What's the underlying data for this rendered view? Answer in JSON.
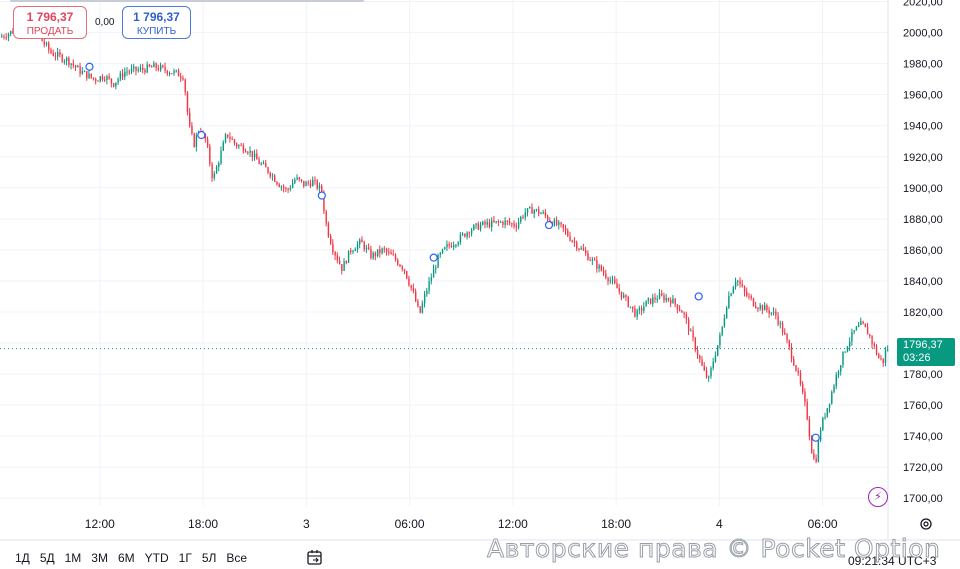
{
  "trade": {
    "sell_price": "1 796,37",
    "sell_label": "ПРОДАТЬ",
    "spread": "0,00",
    "buy_price": "1 796,37",
    "buy_label": "КУПИТЬ"
  },
  "timeframes": [
    "1Д",
    "5Д",
    "1М",
    "3М",
    "6М",
    "YTD",
    "1Г",
    "5Л",
    "Все"
  ],
  "watermark": "Авторские права © Pocket Option",
  "time_readout": "09:21:34 UTC+3",
  "current": {
    "price": "1796,37",
    "countdown": "03:26",
    "value": 1796.37
  },
  "colors": {
    "up": "#089981",
    "down": "#f23645",
    "accent": "#089981",
    "grid": "#f0f3fa"
  },
  "icons": {
    "calendar": "calendar-icon",
    "lightning": "lightning-icon",
    "settings": "settings-icon"
  },
  "chart_data": {
    "type": "line",
    "ylim": [
      1695,
      2021
    ],
    "y_ticks": [
      1700,
      1720,
      1740,
      1760,
      1780,
      1800,
      1820,
      1840,
      1860,
      1880,
      1900,
      1920,
      1940,
      1960,
      1980,
      2000,
      2020
    ],
    "y_tick_labels": [
      "1700,00",
      "1720,00",
      "1740,00",
      "1760,00",
      "1780,00",
      "1800,00",
      "1820,00",
      "1840,00",
      "1860,00",
      "1880,00",
      "1900,00",
      "1920,00",
      "1940,00",
      "1960,00",
      "1980,00",
      "2000,00",
      "2020,00"
    ],
    "x_ticks": [
      {
        "label": "12:00",
        "t": 12
      },
      {
        "label": "18:00",
        "t": 18
      },
      {
        "label": "3",
        "t": 24
      },
      {
        "label": "06:00",
        "t": 30
      },
      {
        "label": "12:00",
        "t": 36
      },
      {
        "label": "18:00",
        "t": 42
      },
      {
        "label": "4",
        "t": 48
      },
      {
        "label": "06:00",
        "t": 54
      }
    ],
    "xlim": [
      6.2,
      57.8
    ],
    "price_path": [
      [
        6.3,
        1997
      ],
      [
        7.5,
        2003
      ],
      [
        8.4,
        2000
      ],
      [
        9.3,
        1987
      ],
      [
        10.3,
        1982
      ],
      [
        11.0,
        1975
      ],
      [
        11.8,
        1970
      ],
      [
        12.4,
        1972
      ],
      [
        12.9,
        1967
      ],
      [
        13.6,
        1975
      ],
      [
        14.5,
        1976
      ],
      [
        15.3,
        1978
      ],
      [
        16.5,
        1974
      ],
      [
        17.0,
        1972
      ],
      [
        17.3,
        1940
      ],
      [
        17.6,
        1928
      ],
      [
        17.9,
        1938
      ],
      [
        18.3,
        1930
      ],
      [
        18.7,
        1905
      ],
      [
        19.1,
        1920
      ],
      [
        19.5,
        1935
      ],
      [
        20.0,
        1928
      ],
      [
        20.7,
        1925
      ],
      [
        21.4,
        1916
      ],
      [
        22.0,
        1910
      ],
      [
        22.5,
        1903
      ],
      [
        23.0,
        1898
      ],
      [
        23.5,
        1906
      ],
      [
        24.0,
        1902
      ],
      [
        24.5,
        1904
      ],
      [
        25.0,
        1898
      ],
      [
        25.3,
        1875
      ],
      [
        25.7,
        1860
      ],
      [
        26.2,
        1848
      ],
      [
        26.7,
        1860
      ],
      [
        27.3,
        1865
      ],
      [
        27.9,
        1856
      ],
      [
        28.6,
        1860
      ],
      [
        29.2,
        1855
      ],
      [
        29.8,
        1848
      ],
      [
        30.4,
        1830
      ],
      [
        30.7,
        1818
      ],
      [
        31.0,
        1830
      ],
      [
        31.3,
        1840
      ],
      [
        31.8,
        1855
      ],
      [
        32.3,
        1862
      ],
      [
        33.0,
        1867
      ],
      [
        33.6,
        1873
      ],
      [
        34.3,
        1876
      ],
      [
        35.0,
        1877
      ],
      [
        35.6,
        1878
      ],
      [
        36.3,
        1876
      ],
      [
        36.8,
        1884
      ],
      [
        37.3,
        1886
      ],
      [
        37.9,
        1883
      ],
      [
        38.4,
        1878
      ],
      [
        39.0,
        1874
      ],
      [
        39.6,
        1866
      ],
      [
        40.3,
        1858
      ],
      [
        41.0,
        1850
      ],
      [
        41.6,
        1843
      ],
      [
        42.2,
        1835
      ],
      [
        42.8,
        1826
      ],
      [
        43.3,
        1818
      ],
      [
        43.9,
        1826
      ],
      [
        44.6,
        1830
      ],
      [
        45.3,
        1828
      ],
      [
        46.0,
        1820
      ],
      [
        46.4,
        1808
      ],
      [
        46.8,
        1795
      ],
      [
        47.2,
        1782
      ],
      [
        47.5,
        1776
      ],
      [
        47.8,
        1790
      ],
      [
        48.2,
        1805
      ],
      [
        48.6,
        1828
      ],
      [
        49.1,
        1842
      ],
      [
        49.6,
        1832
      ],
      [
        50.2,
        1825
      ],
      [
        50.8,
        1822
      ],
      [
        51.4,
        1818
      ],
      [
        51.8,
        1808
      ],
      [
        52.2,
        1796
      ],
      [
        52.6,
        1783
      ],
      [
        52.9,
        1770
      ],
      [
        53.2,
        1755
      ],
      [
        53.5,
        1730
      ],
      [
        53.7,
        1722
      ],
      [
        54.0,
        1745
      ],
      [
        54.5,
        1762
      ],
      [
        55.0,
        1782
      ],
      [
        55.5,
        1798
      ],
      [
        56.0,
        1808
      ],
      [
        56.4,
        1812
      ],
      [
        56.8,
        1806
      ],
      [
        57.1,
        1798
      ],
      [
        57.4,
        1790
      ],
      [
        57.7,
        1788
      ],
      [
        57.8,
        1796.37
      ]
    ],
    "event_markers": [
      {
        "t": 11.4,
        "price": 1978
      },
      {
        "t": 17.9,
        "price": 1934
      },
      {
        "t": 24.9,
        "price": 1895
      },
      {
        "t": 31.4,
        "price": 1855
      },
      {
        "t": 38.1,
        "price": 1876
      },
      {
        "t": 46.8,
        "price": 1830
      },
      {
        "t": 53.6,
        "price": 1739
      }
    ],
    "current_price_line": 1796.37
  }
}
